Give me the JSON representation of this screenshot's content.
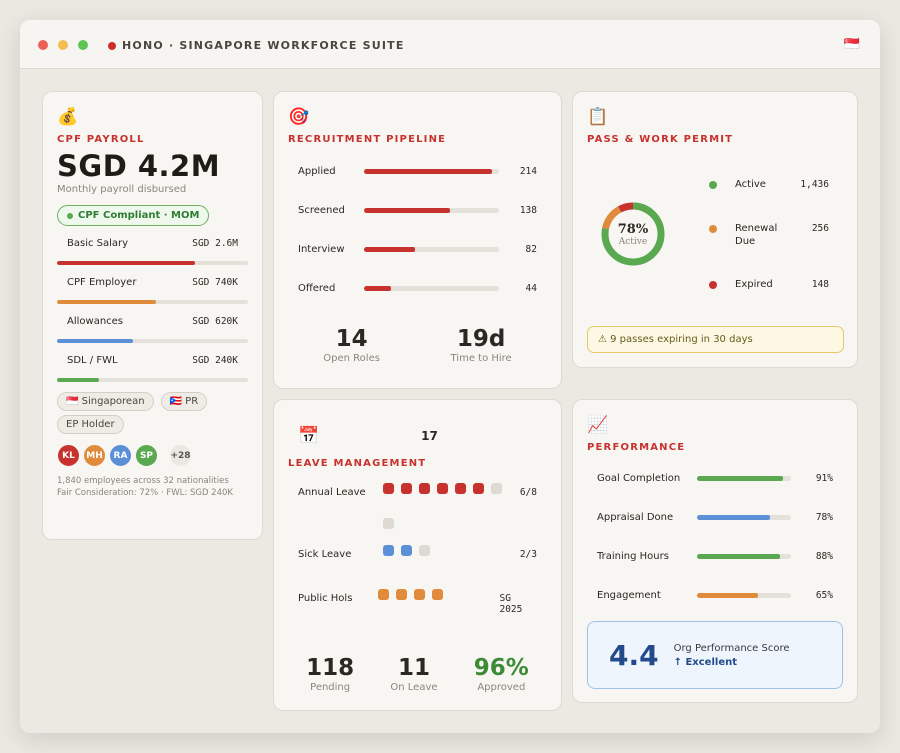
{
  "app": {
    "title": "HONO · SINGAPORE WORKFORCE SUITE",
    "flag": "🇸🇬"
  },
  "payroll": {
    "icon": "💰",
    "title": "CPF PAYROLL",
    "amount": "SGD 4.2M",
    "subtitle": "Monthly payroll disbursed",
    "badge": "CPF Compliant · MOM",
    "rows": [
      {
        "label": "Basic Salary",
        "value": "SGD 2.6M",
        "pct": 72,
        "color": "#c8322e"
      },
      {
        "label": "CPF Employer",
        "value": "SGD 740K",
        "pct": 52,
        "color": "#e08a3c"
      },
      {
        "label": "Allowances",
        "value": "SGD 620K",
        "pct": 40,
        "color": "#5b8fd6"
      },
      {
        "label": "SDL / FWL",
        "value": "SGD 240K",
        "pct": 22,
        "color": "#5aa84f"
      }
    ],
    "tags": [
      "🇸🇬 Singaporean",
      "🇵🇷 PR",
      "EP Holder"
    ],
    "avatars": [
      {
        "initials": "KL",
        "color": "#c8322e"
      },
      {
        "initials": "MH",
        "color": "#e08a3c"
      },
      {
        "initials": "RA",
        "color": "#5b8fd6"
      },
      {
        "initials": "SP",
        "color": "#5aa84f"
      }
    ],
    "more": "+28",
    "footer1": "1,840 employees across 32 nationalities",
    "footer2": "Fair Consideration: 72% · FWL: SGD 240K"
  },
  "recruitment": {
    "icon": "🎯",
    "title": "RECRUITMENT PIPELINE",
    "rows": [
      {
        "label": "Applied",
        "value": "214",
        "pct": 95
      },
      {
        "label": "Screened",
        "value": "138",
        "pct": 64
      },
      {
        "label": "Interview",
        "value": "82",
        "pct": 38
      },
      {
        "label": "Offered",
        "value": "44",
        "pct": 20
      }
    ],
    "stats": [
      {
        "value": "14",
        "label": "Open Roles"
      },
      {
        "value": "19d",
        "label": "Time to Hire"
      }
    ]
  },
  "permits": {
    "icon": "📋",
    "title": "PASS & WORK PERMIT",
    "center_value": "78%",
    "center_label": "Active",
    "legend": [
      {
        "label": "Active",
        "value": "1,436",
        "color": "#5aa84f",
        "share": 78
      },
      {
        "label": "Renewal Due",
        "value": "256",
        "color": "#e08a3c",
        "share": 14
      },
      {
        "label": "Expired",
        "value": "148",
        "color": "#c8322e",
        "share": 8
      }
    ],
    "warning": "⚠ 9 passes expiring in 30 days"
  },
  "leave": {
    "icon": "📅",
    "header_value": "17",
    "title": "LEAVE MANAGEMENT",
    "rows": [
      {
        "label": "Annual Leave",
        "value": "6/8",
        "filled": 6,
        "total": 8,
        "color": "#c8322e"
      },
      {
        "label": "Sick Leave",
        "value": "2/3",
        "filled": 2,
        "total": 3,
        "color": "#5b8fd6"
      },
      {
        "label": "Public Hols",
        "value": "SG 2025",
        "filled": 4,
        "total": 4,
        "color": "#e08a3c"
      }
    ],
    "stats": [
      {
        "value": "118",
        "label": "Pending",
        "color": "#2b2824"
      },
      {
        "value": "11",
        "label": "On Leave",
        "color": "#2b2824"
      },
      {
        "value": "96%",
        "label": "Approved",
        "color": "#3d8b37"
      }
    ]
  },
  "performance": {
    "icon": "📈",
    "title": "PERFORMANCE",
    "rows": [
      {
        "label": "Goal Completion",
        "value": "91%",
        "pct": 91,
        "color": "#5aa84f"
      },
      {
        "label": "Appraisal Done",
        "value": "78%",
        "pct": 78,
        "color": "#5b8fd6"
      },
      {
        "label": "Training Hours",
        "value": "88%",
        "pct": 88,
        "color": "#5aa84f"
      },
      {
        "label": "Engagement",
        "value": "65%",
        "pct": 65,
        "color": "#e08a3c"
      }
    ],
    "score": "4.4",
    "score_label": "Org Performance Score",
    "score_status": "↑ Excellent"
  }
}
